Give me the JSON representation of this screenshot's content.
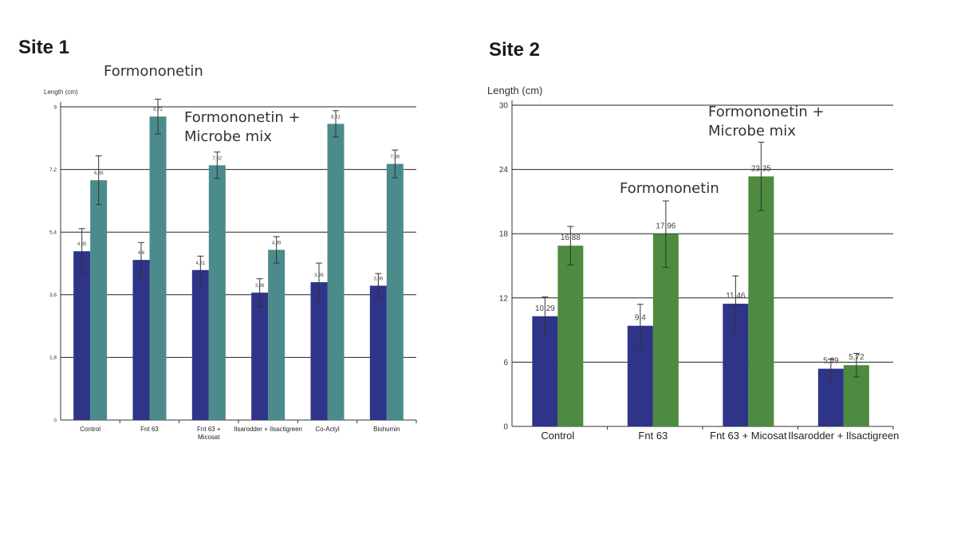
{
  "site1_title": "Site 1",
  "site2_title": "Site 2",
  "annotations": {
    "site1_formononetin": "Formononetin",
    "site1_combo": "Formononetin +\nMicrobe mix",
    "site2_formononetin": "Formononetin",
    "site2_combo": "Formononetin +\nMicrobe mix"
  },
  "chart_data": [
    {
      "type": "bar",
      "ylabel": "Length (cm)",
      "ylim": [
        0,
        9
      ],
      "yticks": [
        "0",
        "1,8",
        "3,6",
        "5,4",
        "7,2",
        "9"
      ],
      "grid": true,
      "categories": [
        "Control",
        "Fnt 63",
        "Fnt 63 + Micosat",
        "Ilsarodder + Ilsactigreen",
        "Co-Actyl",
        "Biohumin"
      ],
      "series": [
        {
          "color": "#2e3487",
          "values": [
            4.85,
            4.6,
            4.31,
            3.66,
            3.96,
            3.86
          ],
          "labels": [
            "4,85",
            "4,6",
            "4,31",
            "3,66",
            "3,96",
            "3,86"
          ],
          "errors": [
            0.65,
            0.5,
            0.4,
            0.4,
            0.55,
            0.35
          ]
        },
        {
          "color": "#4b8b8b",
          "values": [
            6.89,
            8.72,
            7.32,
            4.89,
            8.51,
            7.36
          ],
          "labels": [
            "6,89",
            "8,72",
            "7,32",
            "4,89",
            "8,51",
            "7,36"
          ],
          "errors": [
            0.7,
            0.5,
            0.38,
            0.38,
            0.38,
            0.4
          ]
        }
      ]
    },
    {
      "type": "bar",
      "ylabel": "Length (cm)",
      "ylim": [
        0,
        30
      ],
      "yticks": [
        "0",
        "6",
        "12",
        "18",
        "24",
        "30"
      ],
      "grid": true,
      "categories": [
        "Control",
        "Fnt 63",
        "Fnt 63 + Micosat",
        "Ilsarodder + Ilsactigreen"
      ],
      "series": [
        {
          "color": "#2e3487",
          "values": [
            10.29,
            9.4,
            11.46,
            5.39
          ],
          "labels": [
            "10,29",
            "9,4",
            "11,46",
            "5,39"
          ],
          "errors": [
            1.8,
            2.0,
            2.6,
            0.9
          ]
        },
        {
          "color": "#4e8a3f",
          "values": [
            16.88,
            17.96,
            23.35,
            5.72
          ],
          "labels": [
            "16,88",
            "17,96",
            "23,35",
            "5,72"
          ],
          "errors": [
            1.8,
            3.1,
            3.2,
            1.1
          ]
        }
      ]
    }
  ]
}
